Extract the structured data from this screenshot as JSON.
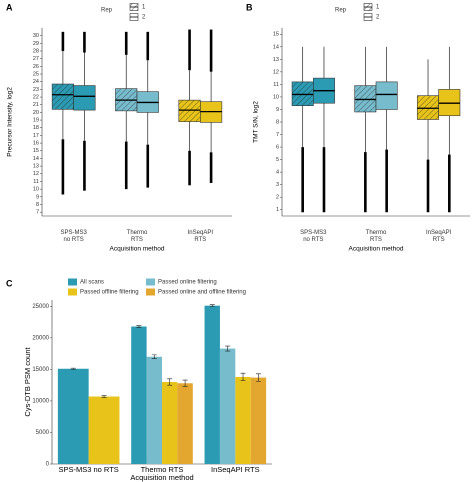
{
  "chart_data": [
    {
      "type": "box",
      "label": "A",
      "legend_title": "Rep",
      "ylabel": "Precursor Intensity, log2",
      "xlabel": "Acquisition method",
      "categories": [
        "SPS-MS3\nno RTS",
        "Thermo\nRTS",
        "InSeqAPI\nRTS"
      ],
      "category_colors": [
        "#2b9ab3",
        "#76bccd",
        "#e8c41a"
      ],
      "series": [
        {
          "name": "1",
          "hatch": true,
          "values": [
            {
              "whisker_low": 16.5,
              "q1": 20.4,
              "median": 22.3,
              "q3": 23.7,
              "whisker_high": 28.0,
              "outlier_min": 9.3,
              "outlier_max": 30.5
            },
            {
              "whisker_low": 16.2,
              "q1": 20.2,
              "median": 21.6,
              "q3": 23.1,
              "whisker_high": 27.5,
              "outlier_min": 10.0,
              "outlier_max": 30.5
            },
            {
              "whisker_low": 15.0,
              "q1": 18.8,
              "median": 20.3,
              "q3": 21.6,
              "whisker_high": 25.5,
              "outlier_min": 10.5,
              "outlier_max": 30.8
            }
          ]
        },
        {
          "name": "2",
          "hatch": false,
          "values": [
            {
              "whisker_low": 16.3,
              "q1": 20.3,
              "median": 22.1,
              "q3": 23.5,
              "whisker_high": 27.8,
              "outlier_min": 9.8,
              "outlier_max": 30.5
            },
            {
              "whisker_low": 15.8,
              "q1": 20.0,
              "median": 21.3,
              "q3": 22.7,
              "whisker_high": 26.8,
              "outlier_min": 10.2,
              "outlier_max": 30.5
            },
            {
              "whisker_low": 14.8,
              "q1": 18.7,
              "median": 20.1,
              "q3": 21.4,
              "whisker_high": 25.3,
              "outlier_min": 10.8,
              "outlier_max": 30.8
            }
          ]
        }
      ],
      "ylim": [
        6.5,
        31
      ],
      "yticks": [
        7,
        8,
        9,
        10,
        11,
        12,
        13,
        14,
        15,
        16,
        17,
        18,
        19,
        20,
        21,
        22,
        23,
        24,
        25,
        26,
        27,
        28,
        29,
        30
      ]
    },
    {
      "type": "box",
      "label": "B",
      "legend_title": "Rep",
      "ylabel": "TMT S/N, log2",
      "xlabel": "Acquisition method",
      "categories": [
        "SPS-MS3\nno RTS",
        "Thermo\nRTS",
        "InSeqAPI\nRTS"
      ],
      "category_colors": [
        "#2b9ab3",
        "#76bccd",
        "#e8c41a"
      ],
      "series": [
        {
          "name": "1",
          "hatch": true,
          "values": [
            {
              "whisker_low": 6.0,
              "q1": 9.3,
              "median": 10.2,
              "q3": 11.2,
              "whisker_high": 14.0,
              "outlier_min": 0.8,
              "outlier_max": null
            },
            {
              "whisker_low": 5.6,
              "q1": 8.8,
              "median": 9.8,
              "q3": 10.9,
              "whisker_high": 14.0,
              "outlier_min": 0.8,
              "outlier_max": null
            },
            {
              "whisker_low": 5.0,
              "q1": 8.2,
              "median": 9.1,
              "q3": 10.1,
              "whisker_high": 13.0,
              "outlier_min": 0.8,
              "outlier_max": null
            }
          ]
        },
        {
          "name": "2",
          "hatch": false,
          "values": [
            {
              "whisker_low": 6.0,
              "q1": 9.5,
              "median": 10.5,
              "q3": 11.5,
              "whisker_high": 14.0,
              "outlier_min": 0.8,
              "outlier_max": null
            },
            {
              "whisker_low": 5.8,
              "q1": 9.0,
              "median": 10.2,
              "q3": 11.2,
              "whisker_high": 14.0,
              "outlier_min": 0.8,
              "outlier_max": null
            },
            {
              "whisker_low": 5.4,
              "q1": 8.5,
              "median": 9.5,
              "q3": 10.6,
              "whisker_high": 14.0,
              "outlier_min": 0.8,
              "outlier_max": null
            }
          ]
        }
      ],
      "ylim": [
        0.5,
        15.5
      ],
      "yticks": [
        1,
        2,
        3,
        4,
        5,
        6,
        7,
        8,
        9,
        10,
        11,
        12,
        13,
        14,
        15
      ]
    },
    {
      "type": "bar",
      "label": "C",
      "ylabel": "Cys-DTB PSM count",
      "xlabel": "Acquisition method",
      "categories": [
        "SPS-MS3 no RTS",
        "Thermo RTS",
        "InSeqAPI RTS"
      ],
      "series": [
        {
          "name": "All scans",
          "color": "#2b9ab3",
          "values": [
            15100,
            21800,
            25100
          ],
          "errors": [
            100,
            150,
            150
          ]
        },
        {
          "name": "Passed online filtering",
          "color": "#76bccd",
          "values": [
            null,
            17000,
            18300
          ],
          "errors": [
            null,
            300,
            400
          ]
        },
        {
          "name": "Passed offline filtering",
          "color": "#e8c41a",
          "values": [
            10700,
            13000,
            13800
          ],
          "errors": [
            150,
            500,
            600
          ]
        },
        {
          "name": "Passed online and offline filtering",
          "color": "#e3a72f",
          "values": [
            null,
            12800,
            13700
          ],
          "errors": [
            null,
            500,
            600
          ]
        }
      ],
      "ylim": [
        0,
        26000
      ],
      "yticks": [
        0,
        5000,
        10000,
        15000,
        20000,
        25000
      ]
    }
  ]
}
